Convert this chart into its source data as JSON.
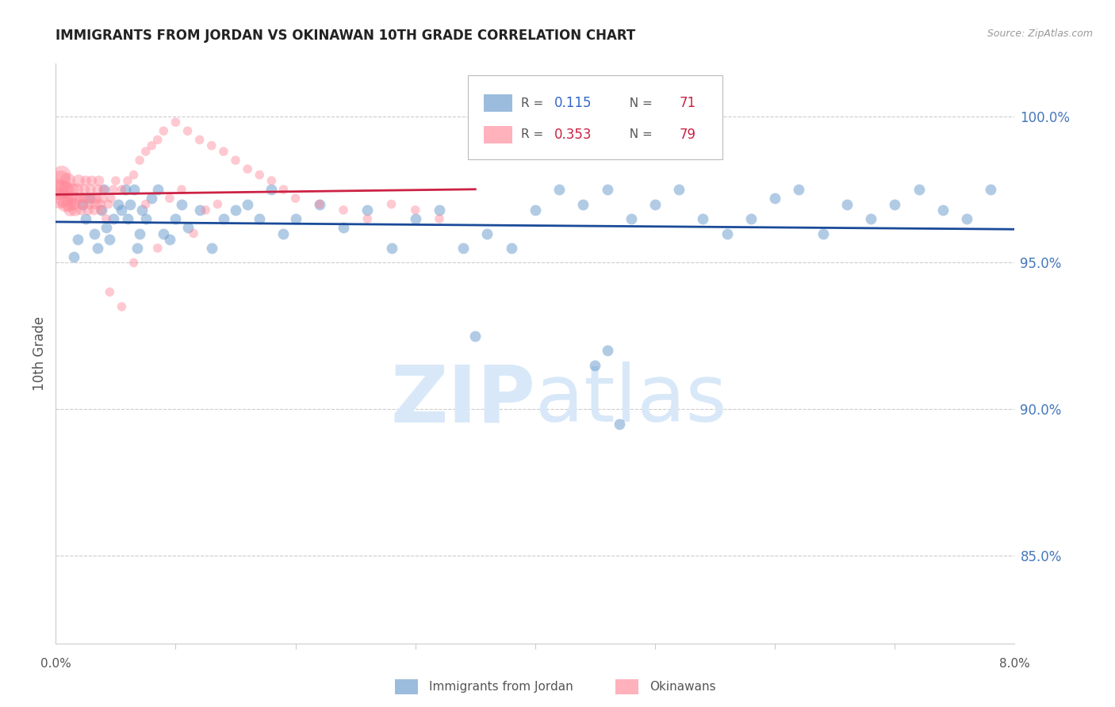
{
  "title": "IMMIGRANTS FROM JORDAN VS OKINAWAN 10TH GRADE CORRELATION CHART",
  "source": "Source: ZipAtlas.com",
  "ylabel": "10th Grade",
  "right_yticks": [
    85.0,
    90.0,
    95.0,
    100.0
  ],
  "xlim": [
    0.0,
    8.0
  ],
  "ylim": [
    82.0,
    101.8
  ],
  "blue_R": 0.115,
  "blue_N": 71,
  "pink_R": 0.353,
  "pink_N": 79,
  "blue_color": "#6699CC",
  "pink_color": "#FF8899",
  "blue_line_color": "#1A4A99",
  "pink_line_color": "#CC2244",
  "legend_R_blue_color": "#3366CC",
  "legend_R_pink_color": "#CC2244",
  "legend_N_color": "#CC2244",
  "grid_color": "#CCCCCC",
  "watermark_color": "#D8E8F8",
  "title_color": "#222222",
  "right_axis_color": "#4477BB",
  "blue_scatter_x": [
    0.15,
    0.18,
    0.22,
    0.25,
    0.28,
    0.32,
    0.35,
    0.38,
    0.4,
    0.42,
    0.45,
    0.48,
    0.52,
    0.55,
    0.58,
    0.6,
    0.62,
    0.65,
    0.68,
    0.7,
    0.72,
    0.75,
    0.8,
    0.85,
    0.9,
    0.95,
    1.0,
    1.05,
    1.1,
    1.2,
    1.3,
    1.4,
    1.5,
    1.6,
    1.7,
    1.8,
    1.9,
    2.0,
    2.2,
    2.4,
    2.6,
    2.8,
    3.0,
    3.2,
    3.4,
    3.6,
    3.8,
    4.0,
    4.2,
    4.4,
    4.6,
    4.8,
    5.0,
    5.2,
    5.4,
    5.6,
    5.8,
    6.0,
    6.2,
    6.4,
    6.6,
    6.8,
    7.0,
    7.2,
    7.4,
    7.6,
    7.8,
    4.5,
    4.6,
    4.7,
    3.5
  ],
  "blue_scatter_y": [
    95.2,
    95.8,
    97.0,
    96.5,
    97.2,
    96.0,
    95.5,
    96.8,
    97.5,
    96.2,
    95.8,
    96.5,
    97.0,
    96.8,
    97.5,
    96.5,
    97.0,
    97.5,
    95.5,
    96.0,
    96.8,
    96.5,
    97.2,
    97.5,
    96.0,
    95.8,
    96.5,
    97.0,
    96.2,
    96.8,
    95.5,
    96.5,
    96.8,
    97.0,
    96.5,
    97.5,
    96.0,
    96.5,
    97.0,
    96.2,
    96.8,
    95.5,
    96.5,
    96.8,
    95.5,
    96.0,
    95.5,
    96.8,
    97.5,
    97.0,
    97.5,
    96.5,
    97.0,
    97.5,
    96.5,
    96.0,
    96.5,
    97.2,
    97.5,
    96.0,
    97.0,
    96.5,
    97.0,
    97.5,
    96.8,
    96.5,
    97.5,
    91.5,
    92.0,
    89.5,
    92.5
  ],
  "pink_scatter_x": [
    0.02,
    0.03,
    0.04,
    0.05,
    0.06,
    0.07,
    0.08,
    0.09,
    0.1,
    0.11,
    0.12,
    0.13,
    0.14,
    0.15,
    0.16,
    0.17,
    0.18,
    0.19,
    0.2,
    0.21,
    0.22,
    0.23,
    0.24,
    0.25,
    0.26,
    0.27,
    0.28,
    0.29,
    0.3,
    0.31,
    0.32,
    0.33,
    0.34,
    0.35,
    0.36,
    0.37,
    0.38,
    0.39,
    0.4,
    0.42,
    0.44,
    0.46,
    0.48,
    0.5,
    0.55,
    0.6,
    0.65,
    0.7,
    0.75,
    0.8,
    0.85,
    0.9,
    1.0,
    1.1,
    1.2,
    1.3,
    1.4,
    1.5,
    1.6,
    1.7,
    1.8,
    1.9,
    2.0,
    2.2,
    2.4,
    2.6,
    2.8,
    3.0,
    3.2,
    0.45,
    0.55,
    0.65,
    0.75,
    0.85,
    0.95,
    1.05,
    1.15,
    1.25,
    1.35
  ],
  "pink_scatter_y": [
    97.5,
    97.2,
    97.8,
    98.0,
    97.5,
    97.2,
    97.0,
    97.5,
    97.8,
    97.0,
    96.8,
    97.2,
    97.5,
    97.0,
    96.8,
    97.2,
    97.5,
    97.8,
    97.2,
    96.8,
    97.0,
    97.2,
    97.5,
    97.8,
    97.2,
    96.8,
    97.0,
    97.5,
    97.8,
    97.2,
    96.8,
    97.0,
    97.2,
    97.5,
    97.8,
    97.0,
    96.8,
    97.2,
    97.5,
    96.5,
    97.0,
    97.2,
    97.5,
    97.8,
    97.5,
    97.8,
    98.0,
    98.5,
    98.8,
    99.0,
    99.2,
    99.5,
    99.8,
    99.5,
    99.2,
    99.0,
    98.8,
    98.5,
    98.2,
    98.0,
    97.8,
    97.5,
    97.2,
    97.0,
    96.8,
    96.5,
    97.0,
    96.8,
    96.5,
    94.0,
    93.5,
    95.0,
    97.0,
    95.5,
    97.2,
    97.5,
    96.0,
    96.8,
    97.0
  ],
  "pink_sizes_large": [
    0.02,
    0.03,
    0.04,
    0.05,
    0.06
  ],
  "bottom_legend_labels": [
    "Immigrants from Jordan",
    "Okinawans"
  ]
}
